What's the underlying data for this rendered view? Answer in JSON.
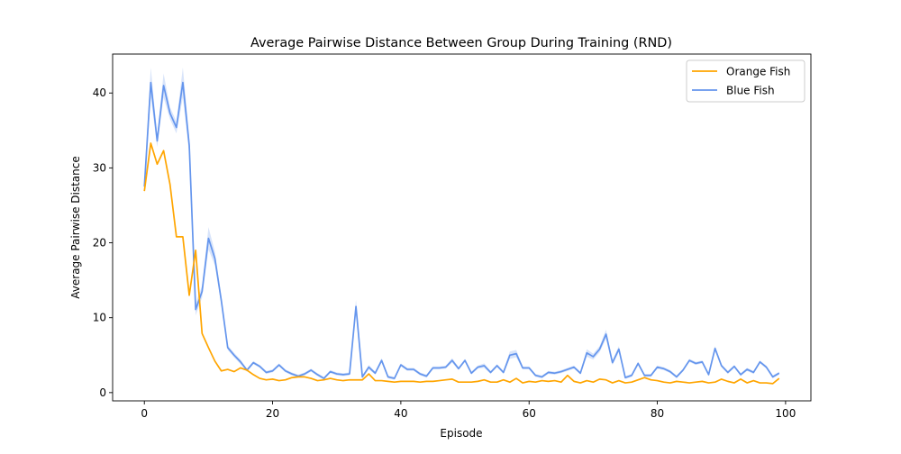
{
  "chart_data": {
    "type": "line",
    "title": "Average Pairwise Distance Between Group During Training (RND)",
    "xlabel": "Episode",
    "ylabel": "Average Pairwise Distance",
    "xlim": [
      -4.95,
      103.95
    ],
    "ylim": [
      -1.1,
      45.2
    ],
    "xticks": [
      0,
      20,
      40,
      60,
      80,
      100
    ],
    "yticks": [
      0,
      10,
      20,
      30,
      40
    ],
    "grid": false,
    "legend_position": "top-right",
    "series": [
      {
        "name": "Orange Fish",
        "color": "#ffa500",
        "x": [
          0,
          1,
          2,
          3,
          4,
          5,
          6,
          7,
          8,
          9,
          10,
          11,
          12,
          13,
          14,
          15,
          16,
          17,
          18,
          19,
          20,
          21,
          22,
          23,
          24,
          25,
          26,
          27,
          28,
          29,
          30,
          31,
          32,
          33,
          34,
          35,
          36,
          37,
          38,
          39,
          40,
          41,
          42,
          43,
          44,
          45,
          46,
          47,
          48,
          49,
          50,
          51,
          52,
          53,
          54,
          55,
          56,
          57,
          58,
          59,
          60,
          61,
          62,
          63,
          64,
          65,
          66,
          67,
          68,
          69,
          70,
          71,
          72,
          73,
          74,
          75,
          76,
          77,
          78,
          79,
          80,
          81,
          82,
          83,
          84,
          85,
          86,
          87,
          88,
          89,
          90,
          91,
          92,
          93,
          94,
          95,
          96,
          97,
          98,
          99
        ],
        "values": [
          26.9,
          33.3,
          30.5,
          32.3,
          27.8,
          20.8,
          20.8,
          13.0,
          19.0,
          7.9,
          6.0,
          4.2,
          2.9,
          3.1,
          2.8,
          3.3,
          3.0,
          2.4,
          1.9,
          1.7,
          1.8,
          1.6,
          1.7,
          2.0,
          2.1,
          2.1,
          1.9,
          1.6,
          1.7,
          1.9,
          1.7,
          1.6,
          1.7,
          1.7,
          1.7,
          2.5,
          1.6,
          1.6,
          1.5,
          1.4,
          1.5,
          1.5,
          1.5,
          1.4,
          1.5,
          1.5,
          1.6,
          1.7,
          1.8,
          1.4,
          1.4,
          1.4,
          1.5,
          1.7,
          1.4,
          1.4,
          1.7,
          1.4,
          1.9,
          1.3,
          1.5,
          1.4,
          1.6,
          1.5,
          1.6,
          1.4,
          2.3,
          1.5,
          1.3,
          1.6,
          1.4,
          1.8,
          1.7,
          1.3,
          1.6,
          1.3,
          1.4,
          1.7,
          2.0,
          1.7,
          1.6,
          1.4,
          1.3,
          1.5,
          1.4,
          1.3,
          1.4,
          1.5,
          1.3,
          1.4,
          1.8,
          1.5,
          1.3,
          1.8,
          1.3,
          1.6,
          1.3,
          1.3,
          1.2,
          1.9
        ]
      },
      {
        "name": "Blue Fish",
        "color": "#6495ed",
        "x": [
          0,
          1,
          2,
          3,
          4,
          5,
          6,
          7,
          8,
          9,
          10,
          11,
          12,
          13,
          14,
          15,
          16,
          17,
          18,
          19,
          20,
          21,
          22,
          23,
          24,
          25,
          26,
          27,
          28,
          29,
          30,
          31,
          32,
          33,
          34,
          35,
          36,
          37,
          38,
          39,
          40,
          41,
          42,
          43,
          44,
          45,
          46,
          47,
          48,
          49,
          50,
          51,
          52,
          53,
          54,
          55,
          56,
          57,
          58,
          59,
          60,
          61,
          62,
          63,
          64,
          65,
          66,
          67,
          68,
          69,
          70,
          71,
          72,
          73,
          74,
          75,
          76,
          77,
          78,
          79,
          80,
          81,
          82,
          83,
          84,
          85,
          86,
          87,
          88,
          89,
          90,
          91,
          92,
          93,
          94,
          95,
          96,
          97,
          98,
          99
        ],
        "values": [
          27.5,
          41.4,
          33.6,
          41.0,
          37.3,
          35.4,
          41.4,
          33.0,
          11.1,
          13.5,
          20.6,
          17.9,
          12.3,
          6.0,
          5.0,
          4.1,
          3.0,
          4.0,
          3.5,
          2.7,
          2.9,
          3.7,
          2.9,
          2.5,
          2.2,
          2.5,
          3.0,
          2.4,
          1.9,
          2.8,
          2.5,
          2.4,
          2.5,
          11.5,
          2.1,
          3.4,
          2.6,
          4.3,
          2.1,
          1.9,
          3.7,
          3.1,
          3.1,
          2.5,
          2.2,
          3.3,
          3.3,
          3.4,
          4.3,
          3.2,
          4.3,
          2.6,
          3.4,
          3.6,
          2.7,
          3.6,
          2.7,
          5.0,
          5.2,
          3.3,
          3.3,
          2.3,
          2.1,
          2.7,
          2.6,
          2.8,
          3.1,
          3.4,
          2.6,
          5.3,
          4.8,
          5.8,
          7.8,
          4.0,
          5.8,
          2.0,
          2.3,
          3.9,
          2.3,
          2.3,
          3.4,
          3.2,
          2.8,
          2.1,
          3.0,
          4.3,
          3.9,
          4.1,
          2.4,
          5.9,
          3.6,
          2.7,
          3.5,
          2.4,
          3.1,
          2.7,
          4.1,
          3.4,
          2.1,
          2.6
        ],
        "band_halfwidth": [
          0.9,
          2.0,
          0.8,
          1.6,
          0.8,
          0.8,
          2.0,
          1.2,
          0.8,
          0.8,
          1.5,
          0.9,
          0.6,
          0.3,
          0.3,
          0.3,
          0.2,
          0.2,
          0.2,
          0.2,
          0.2,
          0.2,
          0.2,
          0.2,
          0.2,
          0.2,
          0.2,
          0.2,
          0.2,
          0.2,
          0.2,
          0.2,
          0.2,
          0.9,
          0.2,
          0.3,
          0.2,
          0.3,
          0.2,
          0.2,
          0.2,
          0.2,
          0.2,
          0.2,
          0.2,
          0.2,
          0.2,
          0.2,
          0.3,
          0.2,
          0.2,
          0.2,
          0.2,
          0.3,
          0.2,
          0.2,
          0.2,
          0.5,
          0.5,
          0.2,
          0.2,
          0.2,
          0.2,
          0.2,
          0.2,
          0.2,
          0.2,
          0.2,
          0.2,
          0.5,
          0.4,
          0.4,
          0.6,
          0.3,
          0.4,
          0.2,
          0.2,
          0.2,
          0.2,
          0.2,
          0.2,
          0.2,
          0.2,
          0.2,
          0.2,
          0.2,
          0.2,
          0.2,
          0.2,
          0.3,
          0.2,
          0.2,
          0.2,
          0.2,
          0.2,
          0.2,
          0.2,
          0.2,
          0.2,
          0.2
        ]
      }
    ]
  }
}
